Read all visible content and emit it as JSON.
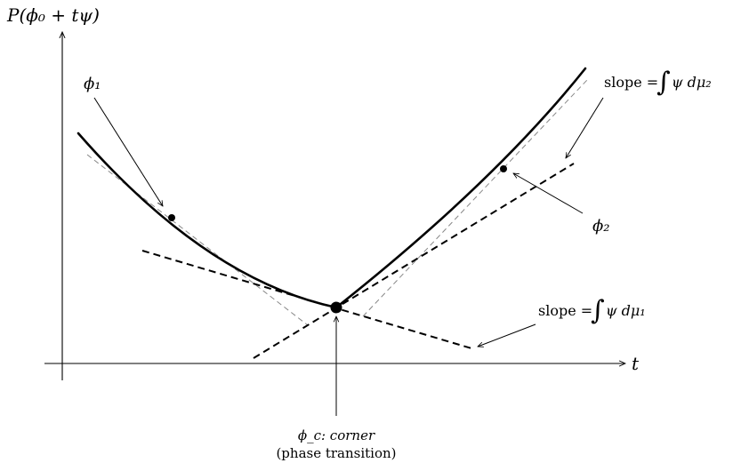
{
  "axes": {
    "y_label": "P(ϕ₀ + tψ)",
    "x_label": "t"
  },
  "points": {
    "phi1": "ϕ₁",
    "phi2": "ϕ₂",
    "phic": "ϕ_c: corner",
    "phic_note": "(phase transition)"
  },
  "slopes": {
    "mu2": {
      "prefix": "slope = ",
      "integral": "∫",
      "body": "ψ dμ₂"
    },
    "mu1": {
      "prefix": "slope = ",
      "integral": "∫",
      "body": "ψ dμ₁"
    }
  }
}
